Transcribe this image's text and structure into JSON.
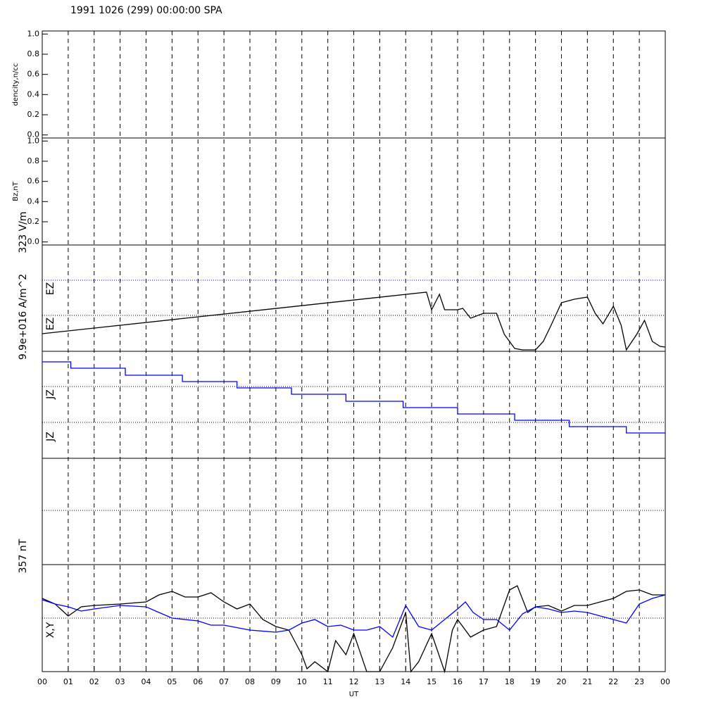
{
  "chart_data": [
    {
      "type": "line",
      "title": "1991 1026 (299) 00:00:00 SPA",
      "ylabel": "dencity,n/cc",
      "xlim": [
        0,
        24
      ],
      "ylim": [
        -0.03,
        1.03
      ],
      "yticks": [
        {
          "value": 0,
          "label": "0.0"
        },
        0.2,
        0.4,
        0.6,
        0.8,
        {
          "value": 1,
          "label": "1.0"
        }
      ],
      "series": []
    },
    {
      "type": "line",
      "ylabel": "Bz,nT",
      "xlim": [
        0,
        24
      ],
      "ylim": [
        -0.03,
        1.03
      ],
      "yticks": [
        {
          "value": 0,
          "label": "0.0"
        },
        0.2,
        0.4,
        0.6,
        0.8,
        {
          "value": 1,
          "label": "1.0"
        }
      ],
      "series": []
    },
    {
      "type": "line",
      "scale_label": "323 V/m",
      "labels": [
        "EZ",
        "EZ"
      ],
      "xlim": [
        0,
        24
      ],
      "ylim": [
        0,
        151
      ],
      "series": [
        {
          "color": "#000000",
          "x": [
            0,
            14.8,
            15.0,
            15.3,
            15.5,
            16,
            16.2,
            16.5,
            17,
            17.5,
            17.8,
            18.2,
            18.5,
            19,
            19.3,
            19.6,
            20,
            20.5,
            21,
            21.3,
            21.6,
            22,
            22.3,
            22.5,
            22.9,
            23.2,
            23.5,
            23.8,
            24
          ],
          "values": [
            25,
            84,
            59,
            81,
            59,
            59,
            61,
            47,
            54,
            54,
            24,
            4,
            2,
            2,
            14,
            37,
            69,
            74,
            77,
            54,
            39,
            64,
            37,
            2,
            24,
            44,
            14,
            7,
            6
          ]
        }
      ]
    },
    {
      "type": "line",
      "scale_label": "9.9e+016 A/m^2",
      "labels": [
        "JZ",
        "JZ"
      ],
      "xlim": [
        0,
        24
      ],
      "ylim": [
        0,
        152
      ],
      "series": [
        {
          "color": "#0000ff",
          "x": [
            0,
            1.1,
            1.1,
            3.2,
            3.2,
            5.4,
            5.4,
            7.5,
            7.5,
            9.6,
            9.6,
            11.7,
            11.7,
            13.9,
            13.9,
            16,
            16,
            18.2,
            18.2,
            20.3,
            20.3,
            22.5,
            22.5,
            24
          ],
          "values": [
            137,
            137,
            128,
            128,
            118,
            118,
            109,
            109,
            100,
            100,
            91,
            91,
            81,
            81,
            72,
            72,
            63,
            63,
            54,
            54,
            45,
            45,
            36,
            36
          ]
        }
      ]
    },
    {
      "type": "line",
      "scale_label": "357 nT",
      "labels": [
        "X,Y"
      ],
      "xlabel": "UT",
      "xlim": [
        0,
        24
      ],
      "ylim": [
        0,
        152
      ],
      "xticks": [
        {
          "value": 0,
          "label": "00"
        },
        {
          "value": 1,
          "label": "01"
        },
        {
          "value": 2,
          "label": "02"
        },
        {
          "value": 3,
          "label": "03"
        },
        {
          "value": 4,
          "label": "04"
        },
        {
          "value": 5,
          "label": "05"
        },
        {
          "value": 6,
          "label": "06"
        },
        {
          "value": 7,
          "label": "07"
        },
        {
          "value": 8,
          "label": "08"
        },
        {
          "value": 9,
          "label": "09"
        },
        10,
        11,
        12,
        13,
        14,
        15,
        16,
        17,
        18,
        19,
        20,
        21,
        22,
        23,
        {
          "value": 24,
          "label": "00"
        }
      ],
      "series": [
        {
          "color": "#000000",
          "x": [
            0,
            0.5,
            1,
            1.5,
            2,
            3,
            4,
            4.5,
            5,
            5.5,
            6,
            6.5,
            7,
            7.5,
            8,
            8.5,
            9,
            9.5,
            10,
            10.2,
            10.5,
            11,
            11.3,
            11.7,
            12,
            12.5,
            13,
            13.5,
            14,
            14.2,
            14.5,
            15,
            15.5,
            15.8,
            16,
            16.5,
            17,
            17.5,
            18,
            18.3,
            18.7,
            19,
            19.5,
            20,
            20.5,
            21,
            21.5,
            22,
            22.5,
            23,
            23.5,
            24
          ],
          "values": [
            104,
            96,
            79,
            92,
            94,
            96,
            99,
            109,
            114,
            106,
            106,
            112,
            99,
            89,
            96,
            74,
            64,
            59,
            24,
            4,
            14,
            0,
            44,
            24,
            54,
            0,
            0,
            34,
            84,
            0,
            14,
            54,
            0,
            59,
            74,
            49,
            59,
            64,
            116,
            122,
            84,
            92,
            94,
            86,
            94,
            94,
            99,
            104,
            114,
            116,
            109,
            109
          ]
        },
        {
          "color": "#0000ff",
          "x": [
            0,
            0.5,
            1,
            1.5,
            2,
            3,
            4,
            4.5,
            5,
            6,
            6.5,
            7,
            8,
            9,
            9.5,
            10,
            10.5,
            11,
            11.5,
            12,
            12.5,
            13,
            13.5,
            14,
            14.5,
            15,
            15.5,
            16,
            16.3,
            16.6,
            17,
            17.5,
            18,
            18.5,
            19,
            19.5,
            20,
            20.5,
            21,
            21.5,
            22,
            22.5,
            23,
            23.5,
            24
          ],
          "values": [
            102,
            96,
            92,
            86,
            89,
            94,
            92,
            84,
            76,
            72,
            66,
            66,
            59,
            56,
            59,
            69,
            74,
            64,
            66,
            59,
            59,
            64,
            49,
            94,
            64,
            59,
            74,
            89,
            99,
            84,
            74,
            74,
            59,
            82,
            92,
            89,
            84,
            86,
            84,
            79,
            74,
            69,
            96,
            104,
            109
          ]
        }
      ]
    }
  ]
}
